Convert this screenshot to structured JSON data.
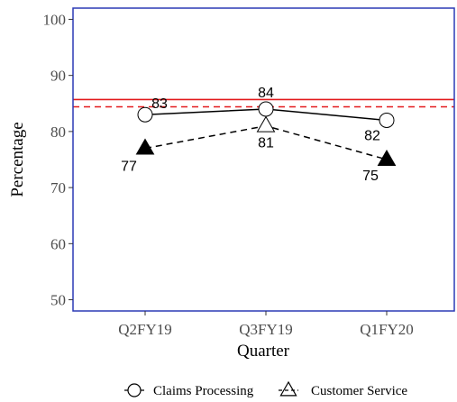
{
  "chart_data": {
    "type": "line",
    "xlabel": "Quarter",
    "ylabel": "Percentage",
    "categories": [
      "Q2FY19",
      "Q3FY19",
      "Q1FY20"
    ],
    "ylim": [
      48,
      102
    ],
    "yticks": [
      50,
      60,
      70,
      80,
      90,
      100
    ],
    "grid": false,
    "legend_position": "bottom",
    "series": [
      {
        "name": "Claims Processing",
        "values": [
          83,
          84,
          82
        ],
        "marker": "open-circle",
        "line_style": "solid",
        "labels": [
          "83",
          "84",
          "82"
        ]
      },
      {
        "name": "Customer Service",
        "values": [
          77,
          81,
          75
        ],
        "marker": "triangle",
        "marker_fill": [
          "#000000",
          "#ffffff",
          "#000000"
        ],
        "line_style": "dashed",
        "labels": [
          "77",
          "81",
          "75"
        ]
      }
    ],
    "reference_lines": [
      {
        "value": 85.7,
        "color": "#e31a1c",
        "style": "solid"
      },
      {
        "value": 84.4,
        "color": "#e31a1c",
        "style": "dashed"
      }
    ],
    "colors": {
      "border": "#2b3ab5",
      "reference": "#e31a1c",
      "series": "#000000"
    }
  }
}
